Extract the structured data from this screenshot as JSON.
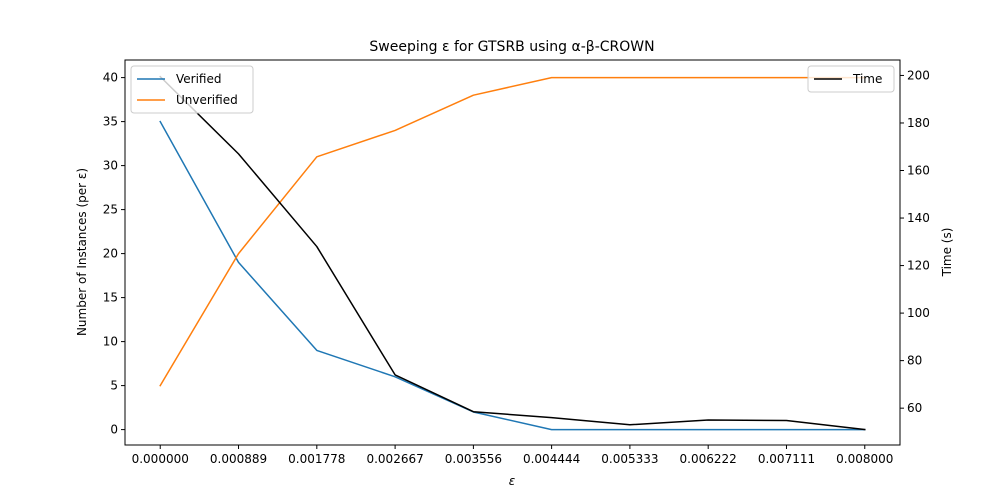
{
  "chart_data": {
    "type": "line",
    "title": "Sweeping ε for GTSRB using α-β-CROWN",
    "xlabel": "ε",
    "ylabel_left": "Number of Instances (per ε)",
    "ylabel_right": "Time (s)",
    "x": [
      0.0,
      0.000889,
      0.001778,
      0.002667,
      0.003556,
      0.004444,
      0.005333,
      0.006222,
      0.007111,
      0.008
    ],
    "x_tick_labels": [
      "0.000000",
      "0.000889",
      "0.001778",
      "0.002667",
      "0.003556",
      "0.004444",
      "0.005333",
      "0.006222",
      "0.007111",
      "0.008000"
    ],
    "ylim_left": [
      -1.75,
      42
    ],
    "ylim_right": [
      44.5,
      206.5
    ],
    "yticks_left": [
      "0",
      "5",
      "10",
      "15",
      "20",
      "25",
      "30",
      "35",
      "40"
    ],
    "yticks_right": [
      "60",
      "80",
      "100",
      "120",
      "140",
      "160",
      "180",
      "200"
    ],
    "series": [
      {
        "name": "Verified",
        "axis": "left",
        "color": "#1f77b4",
        "values": [
          35,
          19,
          9,
          6,
          2,
          0,
          0,
          0,
          0,
          0
        ]
      },
      {
        "name": "Unverified",
        "axis": "left",
        "color": "#ff7f0e",
        "values": [
          5,
          20,
          31,
          34,
          38,
          40,
          40,
          40,
          40,
          40
        ]
      },
      {
        "name": "Time",
        "axis": "right",
        "color": "#000000",
        "values": [
          199.5,
          167,
          128,
          74,
          58.5,
          56,
          53,
          55,
          54.8,
          51
        ]
      }
    ],
    "legend_left": {
      "placement": "upper-left",
      "entries": [
        "Verified",
        "Unverified"
      ]
    },
    "legend_right": {
      "placement": "upper-right",
      "entries": [
        "Time"
      ]
    },
    "grid": false
  }
}
